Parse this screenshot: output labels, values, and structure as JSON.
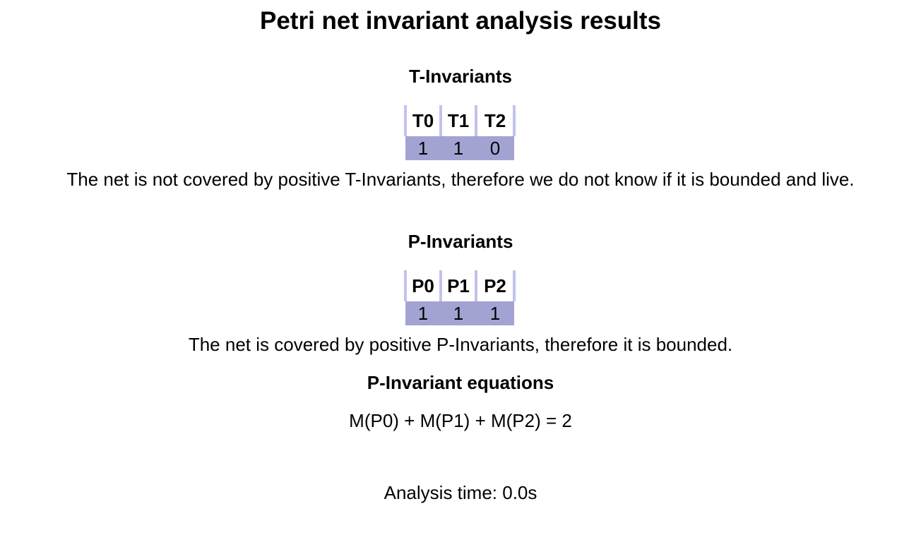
{
  "title": "Petri net invariant analysis results",
  "t_invariants": {
    "heading": "T-Invariants",
    "columns": [
      "T0",
      "T1",
      "T2"
    ],
    "values": [
      "1",
      "1",
      "0"
    ],
    "conclusion": "The net is not covered by positive T-Invariants, therefore we do not know if it is bounded and live."
  },
  "p_invariants": {
    "heading": "P-Invariants",
    "columns": [
      "P0",
      "P1",
      "P2"
    ],
    "values": [
      "1",
      "1",
      "1"
    ],
    "conclusion": "The net is covered by positive P-Invariants, therefore it is bounded."
  },
  "equations": {
    "heading": "P-Invariant equations",
    "items": [
      "M(P0) + M(P1) + M(P2) = 2"
    ]
  },
  "analysis_time": "Analysis time: 0.0s",
  "colors": {
    "header_border": "#c2c2ef",
    "value_row_background": "#a3a3d3"
  }
}
